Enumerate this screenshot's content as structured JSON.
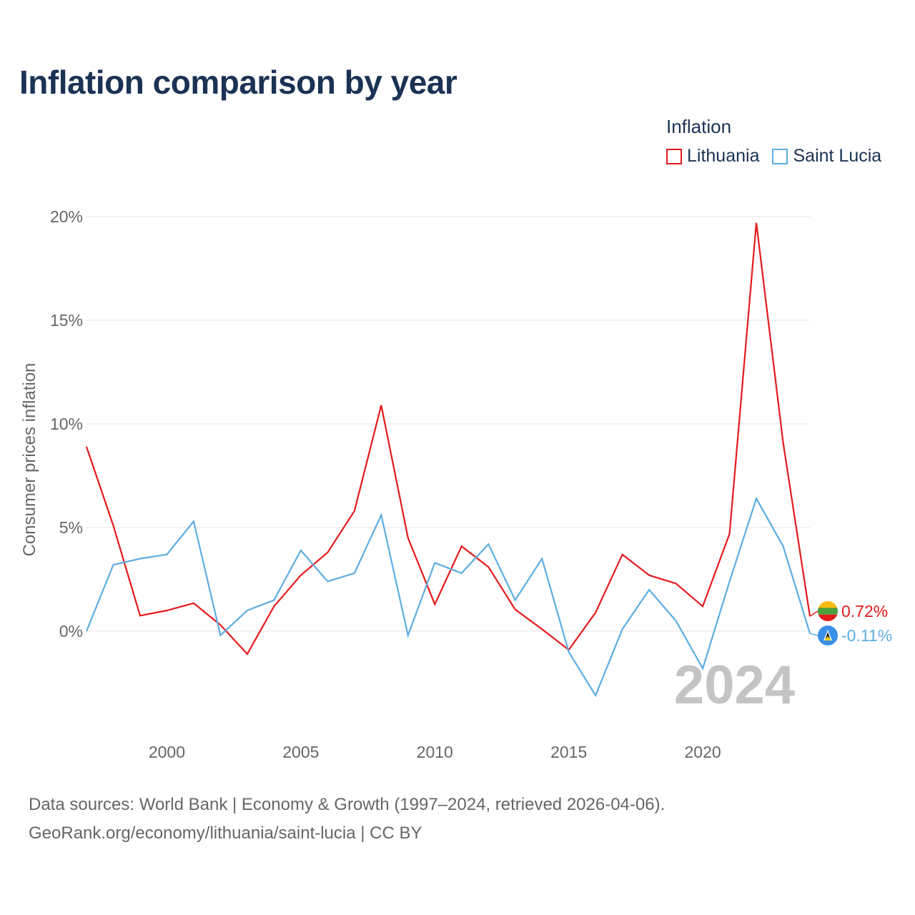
{
  "title": "Inflation comparison by year",
  "legend": {
    "title": "Inflation",
    "items": [
      {
        "label": "Lithuania",
        "color": "#e41a1c"
      },
      {
        "label": "Saint Lucia",
        "color": "#5dade2"
      }
    ]
  },
  "source": {
    "line1": "Data sources: World Bank | Economy & Growth (1997–2024, retrieved 2026-04-06).",
    "line2": "GeoRank.org/economy/lithuania/saint-lucia | CC BY"
  },
  "chart_data": {
    "type": "line",
    "title": "Inflation comparison by year",
    "xlabel": "",
    "ylabel": "Consumer prices inflation",
    "xlim": [
      1997,
      2024
    ],
    "ylim": [
      -4,
      20
    ],
    "x_ticks": [
      2000,
      2005,
      2010,
      2015,
      2020
    ],
    "y_ticks": [
      {
        "value": 20,
        "label": "20%"
      },
      {
        "value": 15,
        "label": "15%"
      },
      {
        "value": 10,
        "label": "10%"
      },
      {
        "value": 5,
        "label": "5%"
      },
      {
        "value": 0,
        "label": "0%"
      }
    ],
    "current_year": "2024",
    "x": [
      1997,
      1998,
      1999,
      2000,
      2001,
      2002,
      2003,
      2004,
      2005,
      2006,
      2007,
      2008,
      2009,
      2010,
      2011,
      2012,
      2013,
      2014,
      2015,
      2016,
      2017,
      2018,
      2019,
      2020,
      2021,
      2022,
      2023,
      2024
    ],
    "series": [
      {
        "name": "Lithuania",
        "color": "#e41a1c",
        "end_label": "0.72%",
        "values": [
          8.9,
          5.1,
          0.75,
          1.0,
          1.35,
          0.3,
          -1.1,
          1.2,
          2.7,
          3.8,
          5.8,
          10.9,
          4.5,
          1.3,
          4.1,
          3.1,
          1.05,
          0.1,
          -0.9,
          0.9,
          3.7,
          2.7,
          2.3,
          1.2,
          4.7,
          19.7,
          9.1,
          0.72
        ]
      },
      {
        "name": "Saint Lucia",
        "color": "#5dade2",
        "end_label": "-0.11%",
        "values": [
          0.0,
          3.2,
          3.5,
          3.7,
          5.3,
          -0.2,
          1.0,
          1.5,
          3.9,
          2.4,
          2.8,
          5.6,
          -0.2,
          3.3,
          2.8,
          4.2,
          1.5,
          3.5,
          -1.0,
          -3.1,
          0.1,
          2.0,
          0.5,
          -1.8,
          2.4,
          6.4,
          4.1,
          -0.11
        ]
      }
    ]
  }
}
